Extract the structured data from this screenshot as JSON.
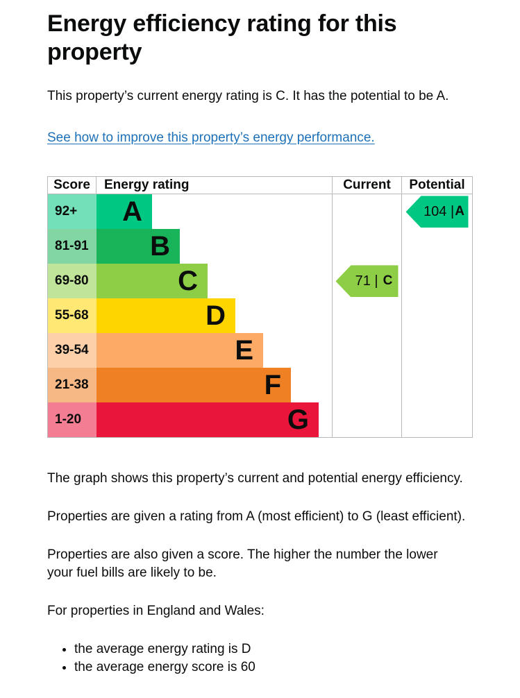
{
  "page": {
    "title": "Energy efficiency rating for this property",
    "intro": "This property’s current energy rating is C. It has the potential to be A.",
    "improve_link": "See how to improve this property’s energy performance."
  },
  "chart_data": {
    "type": "bar",
    "title": "Energy efficiency rating for this property",
    "columns": {
      "score": "Score",
      "rating": "Energy rating",
      "current": "Current",
      "potential": "Potential"
    },
    "bands": [
      {
        "letter": "A",
        "score_range": "92+",
        "color": "#00c781",
        "tint": "#73e0ba",
        "width_pct": 23.6
      },
      {
        "letter": "B",
        "score_range": "81-91",
        "color": "#19b459",
        "tint": "#81d6a4",
        "width_pct": 35.4
      },
      {
        "letter": "C",
        "score_range": "69-80",
        "color": "#8dce46",
        "tint": "#c0e499",
        "width_pct": 47.2
      },
      {
        "letter": "D",
        "score_range": "55-68",
        "color": "#ffd500",
        "tint": "#ffe873",
        "width_pct": 59.0
      },
      {
        "letter": "E",
        "score_range": "39-54",
        "color": "#fcaa65",
        "tint": "#fdd0aa",
        "width_pct": 70.8
      },
      {
        "letter": "F",
        "score_range": "21-38",
        "color": "#ef8023",
        "tint": "#f6b986",
        "width_pct": 82.6
      },
      {
        "letter": "G",
        "score_range": "1-20",
        "color": "#e9153b",
        "tint": "#f37e93",
        "width_pct": 94.4
      }
    ],
    "current": {
      "score": 71,
      "band": "C",
      "display": "71 |",
      "color": "#8dce46",
      "band_index": 2
    },
    "potential": {
      "score": 104,
      "band": "A",
      "display": "104 |",
      "color": "#00c781",
      "band_index": 0
    }
  },
  "body": {
    "graph_description": "The graph shows this property’s current and potential energy efficiency.",
    "rating_explanation": "Properties are given a rating from A (most efficient) to G (least efficient).",
    "score_explanation": "Properties are also given a score. The higher the number the lower your fuel bills are likely to be.",
    "england_wales_heading": "For properties in England and Wales:",
    "bullets": [
      "the average energy rating is D",
      "the average energy score is 60"
    ]
  }
}
